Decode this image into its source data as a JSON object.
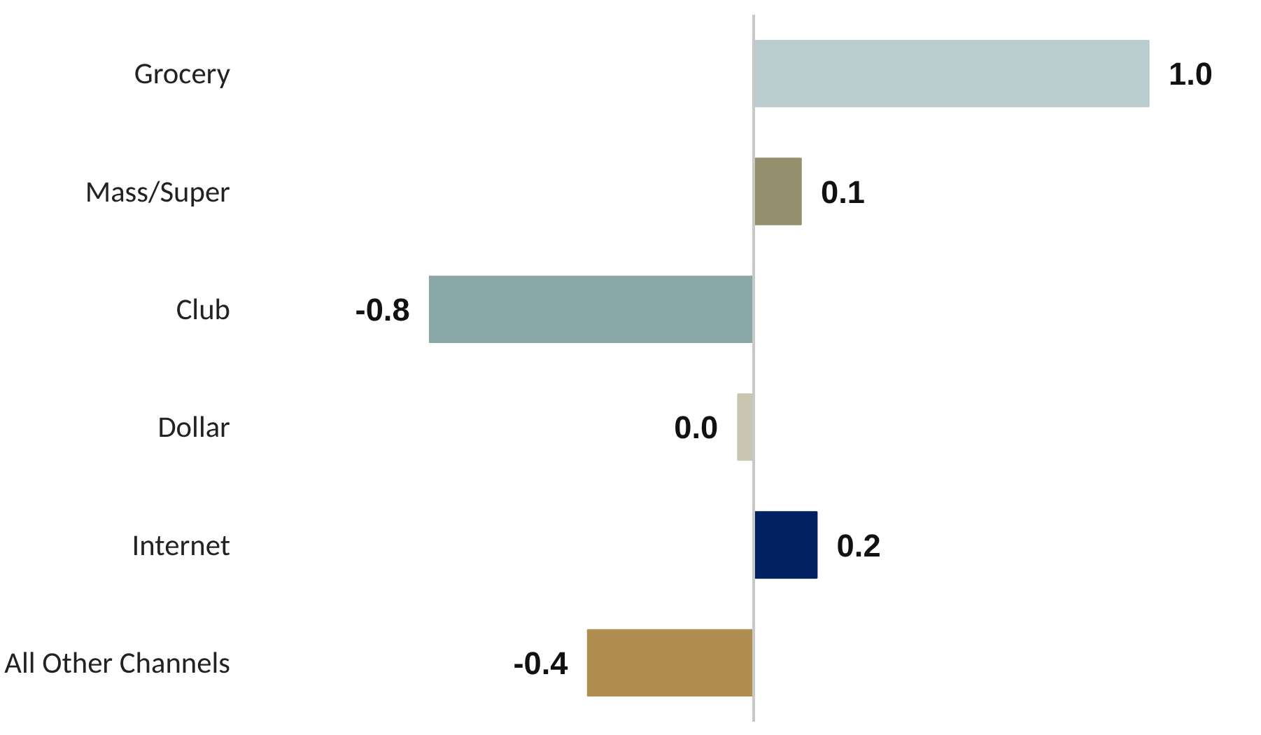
{
  "chart_data": {
    "type": "bar",
    "orientation": "horizontal",
    "categories": [
      "Grocery",
      "Mass/Super",
      "Club",
      "Dollar",
      "Internet",
      "All Other Channels"
    ],
    "values": [
      1.0,
      0.12,
      -0.82,
      -0.04,
      0.16,
      -0.42
    ],
    "colors": [
      "#b9cdcf",
      "#948f6c",
      "#8aa8a8",
      "#c8c6b0",
      "#002060",
      "#b08d50"
    ],
    "value_labels": [
      "1.0",
      "0.1",
      "-0.8",
      "0.0",
      "0.2",
      "-0.4"
    ],
    "grid": false
  }
}
